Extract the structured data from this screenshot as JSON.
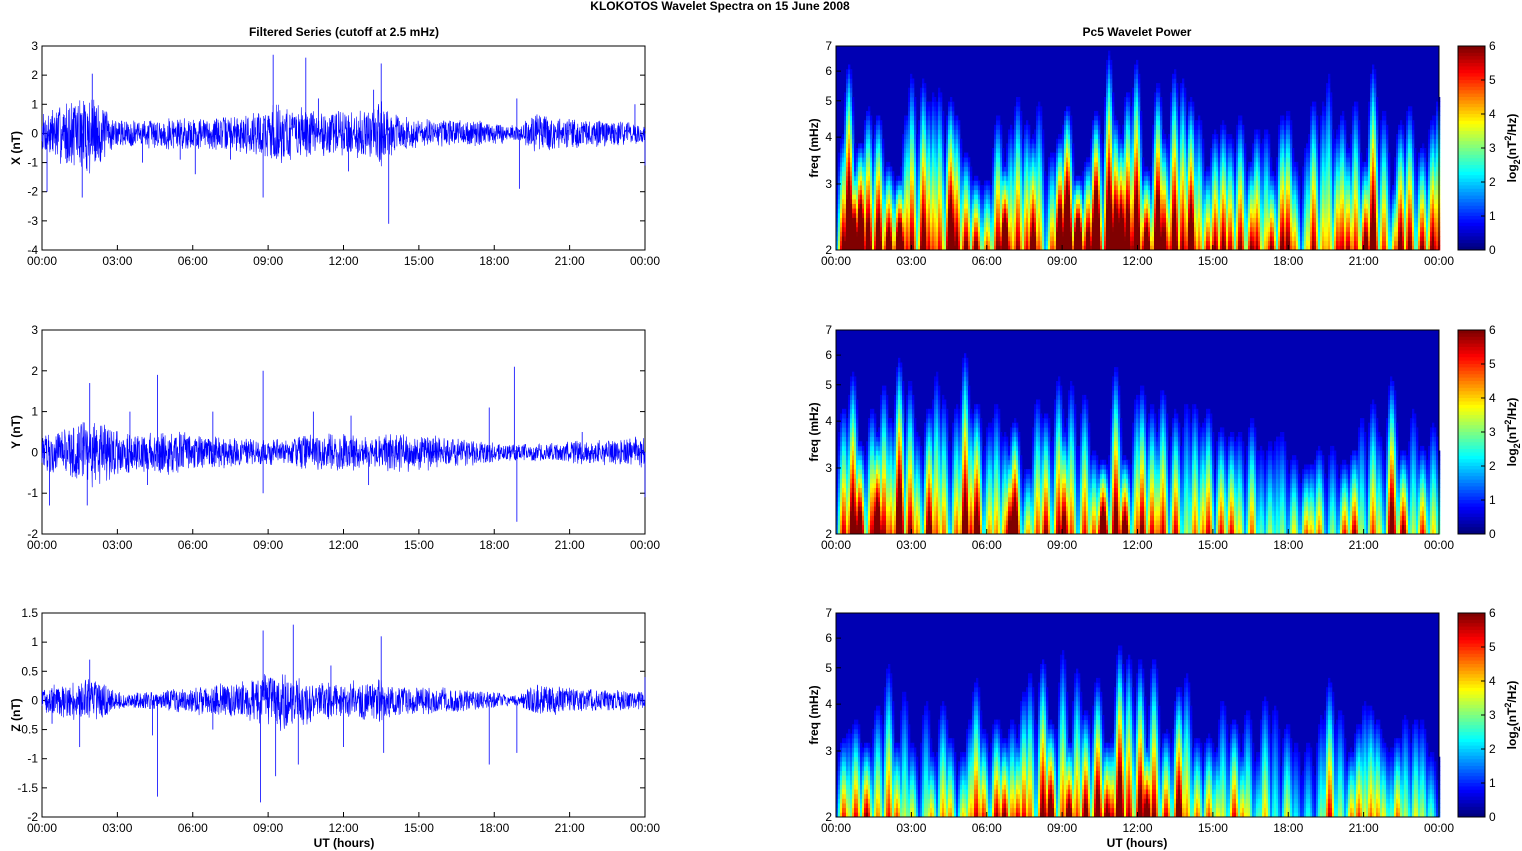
{
  "figure": {
    "suptitle": "KLOKOTOS Wavelet Spectra on 15 June      2008",
    "left_title": "Filtered Series (cutoff at 2.5 mHz)",
    "right_title": "Pc5 Wavelet Power",
    "xlabel": "UT (hours)",
    "freq_label": "freq (mHz)",
    "colorbar_label": "log2(nT2/Hz)"
  },
  "chart_data": [
    {
      "type": "line",
      "panel": "X",
      "title": "Filtered Series (cutoff at 2.5 mHz)",
      "ylabel": "X (nT)",
      "xlabel": "",
      "x_range_hours": [
        0,
        24
      ],
      "x_ticks": [
        "00:00",
        "03:00",
        "06:00",
        "09:00",
        "12:00",
        "15:00",
        "18:00",
        "21:00",
        "00:00"
      ],
      "ylim": [
        -4,
        3
      ],
      "y_ticks": [
        "3",
        "2",
        "1",
        "0",
        "-1",
        "-2",
        "-3",
        "-4"
      ],
      "y_tick_values": [
        3,
        2,
        1,
        0,
        -1,
        -2,
        -3,
        -4
      ],
      "color": "#0000ff",
      "envelope": [
        [
          0,
          0.8
        ],
        [
          1,
          1.2
        ],
        [
          1.5,
          1.3
        ],
        [
          2,
          1.6
        ],
        [
          2.5,
          0.9
        ],
        [
          3,
          0.5
        ],
        [
          4,
          0.5
        ],
        [
          5,
          0.6
        ],
        [
          6,
          0.6
        ],
        [
          7,
          0.6
        ],
        [
          8,
          0.7
        ],
        [
          8.8,
          0.9
        ],
        [
          9.3,
          1.2
        ],
        [
          10,
          1.0
        ],
        [
          11,
          0.8
        ],
        [
          12,
          0.9
        ],
        [
          13,
          0.9
        ],
        [
          13.5,
          1.3
        ],
        [
          14,
          0.7
        ],
        [
          15,
          0.5
        ],
        [
          16,
          0.5
        ],
        [
          17,
          0.5
        ],
        [
          18,
          0.4
        ],
        [
          19,
          0.3
        ],
        [
          19.7,
          0.7
        ],
        [
          20.5,
          0.6
        ],
        [
          21.5,
          0.5
        ],
        [
          22.5,
          0.5
        ],
        [
          24,
          0.4
        ]
      ],
      "spikes": [
        [
          0.2,
          -2.0
        ],
        [
          1.0,
          -1.0
        ],
        [
          1.6,
          -2.2
        ],
        [
          2.0,
          2.05
        ],
        [
          4.0,
          -1.0
        ],
        [
          5.5,
          -0.9
        ],
        [
          6.1,
          -1.4
        ],
        [
          7.5,
          -0.9
        ],
        [
          9.2,
          2.7
        ],
        [
          8.8,
          -2.2
        ],
        [
          10.5,
          2.6
        ],
        [
          11.0,
          1.2
        ],
        [
          12.2,
          -1.3
        ],
        [
          13.2,
          1.5
        ],
        [
          13.5,
          2.4
        ],
        [
          13.8,
          -3.1
        ],
        [
          18.9,
          1.2
        ],
        [
          19.0,
          -1.9
        ],
        [
          23.6,
          1.0
        ],
        [
          24.0,
          -1.1
        ]
      ]
    },
    {
      "type": "heatmap",
      "panel": "X",
      "title": "Pc5 Wavelet Power",
      "ylabel": "freq (mHz)",
      "x_range_hours": [
        0,
        24
      ],
      "x_ticks": [
        "00:00",
        "03:00",
        "06:00",
        "09:00",
        "12:00",
        "15:00",
        "18:00",
        "21:00",
        "00:00"
      ],
      "y_scale": "log",
      "ylim": [
        2,
        7
      ],
      "y_ticks": [
        "7",
        "6",
        "5",
        "4",
        "3",
        "2"
      ],
      "y_tick_values": [
        7,
        6,
        5,
        4,
        3,
        2
      ],
      "colorbar": {
        "label": "log2(nT2/Hz)",
        "range": [
          0,
          6
        ],
        "ticks": [
          "6",
          "5",
          "4",
          "3",
          "2",
          "1",
          "0"
        ],
        "tick_values": [
          6,
          5,
          4,
          3,
          2,
          1,
          0
        ],
        "colormap": "jet"
      },
      "activity": [
        [
          0,
          5.6
        ],
        [
          1,
          6.0
        ],
        [
          2,
          6.0
        ],
        [
          2.8,
          5.2
        ],
        [
          3.5,
          4.4
        ],
        [
          5,
          5.0
        ],
        [
          6,
          4.8
        ],
        [
          7,
          5.0
        ],
        [
          8,
          5.0
        ],
        [
          9,
          5.6
        ],
        [
          10,
          5.9
        ],
        [
          11,
          5.9
        ],
        [
          12,
          5.6
        ],
        [
          13,
          5.5
        ],
        [
          14,
          4.6
        ],
        [
          15,
          4.4
        ],
        [
          16,
          4.0
        ],
        [
          17,
          3.6
        ],
        [
          18,
          3.5
        ],
        [
          19,
          4.0
        ],
        [
          20,
          5.5
        ],
        [
          21,
          5.2
        ],
        [
          22,
          4.6
        ],
        [
          23,
          4.2
        ],
        [
          24,
          3.8
        ]
      ],
      "seed": 11
    },
    {
      "type": "line",
      "panel": "Y",
      "title": "",
      "ylabel": "Y (nT)",
      "xlabel": "",
      "x_range_hours": [
        0,
        24
      ],
      "x_ticks": [
        "00:00",
        "03:00",
        "06:00",
        "09:00",
        "12:00",
        "15:00",
        "18:00",
        "21:00",
        "00:00"
      ],
      "ylim": [
        -2,
        3
      ],
      "y_ticks": [
        "3",
        "2",
        "1",
        "0",
        "-1",
        "-2"
      ],
      "y_tick_values": [
        3,
        2,
        1,
        0,
        -1,
        -2
      ],
      "color": "#0000ff",
      "envelope": [
        [
          0,
          0.5
        ],
        [
          1,
          0.6
        ],
        [
          2,
          0.9
        ],
        [
          3,
          0.6
        ],
        [
          4,
          0.5
        ],
        [
          5,
          0.6
        ],
        [
          6,
          0.5
        ],
        [
          7,
          0.4
        ],
        [
          8,
          0.4
        ],
        [
          9,
          0.3
        ],
        [
          10,
          0.4
        ],
        [
          11,
          0.5
        ],
        [
          12,
          0.5
        ],
        [
          13,
          0.4
        ],
        [
          14,
          0.5
        ],
        [
          15,
          0.5
        ],
        [
          16,
          0.4
        ],
        [
          17,
          0.35
        ],
        [
          18,
          0.25
        ],
        [
          19,
          0.2
        ],
        [
          20,
          0.25
        ],
        [
          21,
          0.3
        ],
        [
          22,
          0.3
        ],
        [
          23,
          0.35
        ],
        [
          24,
          0.5
        ]
      ],
      "spikes": [
        [
          0.3,
          -1.3
        ],
        [
          1.9,
          1.7
        ],
        [
          1.8,
          -1.3
        ],
        [
          3.5,
          1.0
        ],
        [
          4.6,
          1.9
        ],
        [
          4.2,
          -0.8
        ],
        [
          6.8,
          1.0
        ],
        [
          8.8,
          2.0
        ],
        [
          8.8,
          -1.0
        ],
        [
          10.8,
          1.0
        ],
        [
          12.3,
          0.9
        ],
        [
          13.0,
          -0.8
        ],
        [
          17.8,
          1.1
        ],
        [
          18.8,
          2.1
        ],
        [
          18.9,
          -1.7
        ],
        [
          21.5,
          0.5
        ],
        [
          24.0,
          -1.1
        ]
      ]
    },
    {
      "type": "heatmap",
      "panel": "Y",
      "title": "",
      "ylabel": "freq (mHz)",
      "x_range_hours": [
        0,
        24
      ],
      "x_ticks": [
        "00:00",
        "03:00",
        "06:00",
        "09:00",
        "12:00",
        "15:00",
        "18:00",
        "21:00",
        "00:00"
      ],
      "y_scale": "log",
      "ylim": [
        2,
        7
      ],
      "y_ticks": [
        "7",
        "6",
        "5",
        "4",
        "3",
        "2"
      ],
      "y_tick_values": [
        7,
        6,
        5,
        4,
        3,
        2
      ],
      "colorbar": {
        "label": "log2(nT2/Hz)",
        "range": [
          0,
          6
        ],
        "ticks": [
          "6",
          "5",
          "4",
          "3",
          "2",
          "1",
          "0"
        ],
        "tick_values": [
          6,
          5,
          4,
          3,
          2,
          1,
          0
        ],
        "colormap": "jet"
      },
      "activity": [
        [
          0,
          4.4
        ],
        [
          1,
          5.0
        ],
        [
          2,
          5.4
        ],
        [
          3,
          4.6
        ],
        [
          4,
          4.8
        ],
        [
          5,
          5.0
        ],
        [
          6,
          4.6
        ],
        [
          7,
          4.6
        ],
        [
          8,
          4.2
        ],
        [
          9,
          3.9
        ],
        [
          10,
          4.8
        ],
        [
          11,
          5.0
        ],
        [
          12,
          4.8
        ],
        [
          13,
          4.0
        ],
        [
          14,
          3.6
        ],
        [
          15,
          3.2
        ],
        [
          16,
          3.0
        ],
        [
          17,
          2.8
        ],
        [
          18,
          2.5
        ],
        [
          19,
          2.8
        ],
        [
          20,
          3.2
        ],
        [
          21,
          3.6
        ],
        [
          22,
          4.0
        ],
        [
          23,
          3.4
        ],
        [
          24,
          2.6
        ]
      ],
      "seed": 23
    },
    {
      "type": "line",
      "panel": "Z",
      "title": "",
      "ylabel": "Z (nT)",
      "xlabel": "UT (hours)",
      "x_range_hours": [
        0,
        24
      ],
      "x_ticks": [
        "00:00",
        "03:00",
        "06:00",
        "09:00",
        "12:00",
        "15:00",
        "18:00",
        "21:00",
        "00:00"
      ],
      "ylim": [
        -2,
        1.5
      ],
      "y_ticks": [
        "1.5",
        "1",
        "0.5",
        "0",
        "-0.5",
        "-1",
        "-1.5",
        "-2"
      ],
      "y_tick_values": [
        1.5,
        1,
        0.5,
        0,
        -0.5,
        -1,
        -1.5,
        -2
      ],
      "color": "#0000ff",
      "envelope": [
        [
          0,
          0.25
        ],
        [
          1,
          0.35
        ],
        [
          2,
          0.45
        ],
        [
          3,
          0.15
        ],
        [
          4,
          0.15
        ],
        [
          5,
          0.2
        ],
        [
          6,
          0.25
        ],
        [
          7,
          0.3
        ],
        [
          8,
          0.35
        ],
        [
          9,
          0.5
        ],
        [
          9.5,
          0.55
        ],
        [
          10,
          0.5
        ],
        [
          11,
          0.35
        ],
        [
          12,
          0.35
        ],
        [
          13,
          0.35
        ],
        [
          13.5,
          0.45
        ],
        [
          14,
          0.3
        ],
        [
          15,
          0.25
        ],
        [
          16,
          0.25
        ],
        [
          17,
          0.2
        ],
        [
          18,
          0.15
        ],
        [
          19,
          0.1
        ],
        [
          19.7,
          0.3
        ],
        [
          20.5,
          0.25
        ],
        [
          21.5,
          0.2
        ],
        [
          22.5,
          0.2
        ],
        [
          24,
          0.15
        ]
      ],
      "spikes": [
        [
          0.4,
          -0.4
        ],
        [
          1.9,
          0.7
        ],
        [
          1.5,
          -0.8
        ],
        [
          4.6,
          -1.65
        ],
        [
          4.4,
          -0.6
        ],
        [
          6.8,
          -0.5
        ],
        [
          8.8,
          1.2
        ],
        [
          8.7,
          -1.75
        ],
        [
          9.3,
          -1.3
        ],
        [
          10.0,
          1.3
        ],
        [
          10.2,
          -1.1
        ],
        [
          11.5,
          0.6
        ],
        [
          12.0,
          -0.8
        ],
        [
          13.5,
          1.1
        ],
        [
          13.6,
          -0.9
        ],
        [
          17.8,
          -1.1
        ],
        [
          18.9,
          -0.9
        ],
        [
          24.0,
          0.4
        ]
      ]
    },
    {
      "type": "heatmap",
      "panel": "Z",
      "title": "",
      "ylabel": "freq (mHz)",
      "xlabel": "UT (hours)",
      "x_range_hours": [
        0,
        24
      ],
      "x_ticks": [
        "00:00",
        "03:00",
        "06:00",
        "09:00",
        "12:00",
        "15:00",
        "18:00",
        "21:00",
        "00:00"
      ],
      "y_scale": "log",
      "ylim": [
        2,
        7
      ],
      "y_ticks": [
        "7",
        "6",
        "5",
        "4",
        "3",
        "2"
      ],
      "y_tick_values": [
        7,
        6,
        5,
        4,
        3,
        2
      ],
      "colorbar": {
        "label": "log2(nT2/Hz)",
        "range": [
          0,
          6
        ],
        "ticks": [
          "6",
          "5",
          "4",
          "3",
          "2",
          "1",
          "0"
        ],
        "tick_values": [
          6,
          5,
          4,
          3,
          2,
          1,
          0
        ],
        "colormap": "jet"
      },
      "activity": [
        [
          0,
          3.2
        ],
        [
          1,
          4.0
        ],
        [
          1.8,
          4.6
        ],
        [
          2.5,
          3.4
        ],
        [
          3.2,
          2.2
        ],
        [
          4.5,
          3.0
        ],
        [
          5.5,
          3.4
        ],
        [
          6.5,
          3.6
        ],
        [
          7.5,
          4.0
        ],
        [
          8.5,
          4.2
        ],
        [
          9.5,
          5.2
        ],
        [
          10.5,
          4.8
        ],
        [
          11.5,
          4.6
        ],
        [
          12.5,
          4.2
        ],
        [
          13.5,
          4.0
        ],
        [
          14.5,
          3.2
        ],
        [
          15.5,
          3.0
        ],
        [
          16.5,
          2.8
        ],
        [
          17.5,
          2.6
        ],
        [
          18.5,
          2.2
        ],
        [
          19.5,
          3.4
        ],
        [
          20.5,
          3.0
        ],
        [
          21.5,
          2.4
        ],
        [
          22.5,
          2.6
        ],
        [
          23.5,
          2.0
        ],
        [
          24,
          1.6
        ]
      ],
      "seed": 37
    }
  ]
}
